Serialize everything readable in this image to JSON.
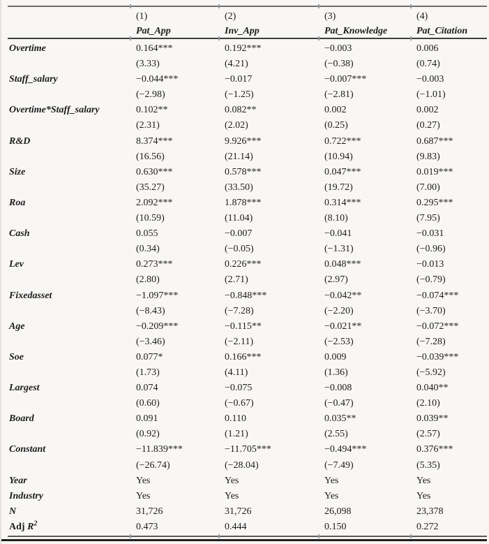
{
  "page": {
    "background": "#f8f7f5",
    "text_color": "#1d1d1d",
    "rule_color_top": "#6d6d6d",
    "rule_color_header": "#3e3e3e",
    "rule_color_bottom": "#1f1f1f"
  },
  "table": {
    "column_numbers": [
      "(1)",
      "(2)",
      "(3)",
      "(4)"
    ],
    "column_names": [
      "Pat_App",
      "Inv_App",
      "Pat_Knowledge",
      "Pat_Citation"
    ],
    "coef_rows": [
      {
        "label": "Overtime",
        "coefs": [
          "0.164***",
          "0.192***",
          "−0.003",
          "0.006"
        ],
        "tstats": [
          "(3.33)",
          "(4.21)",
          "(−0.38)",
          "(0.74)"
        ]
      },
      {
        "label": "Staff_salary",
        "coefs": [
          "−0.044***",
          "−0.017",
          "−0.007***",
          "−0.003"
        ],
        "tstats": [
          "(−2.98)",
          "(−1.25)",
          "(−2.81)",
          "(−1.01)"
        ]
      },
      {
        "label": "Overtime*Staff_salary",
        "coefs": [
          "0.102**",
          "0.082**",
          "0.002",
          "0.002"
        ],
        "tstats": [
          "(2.31)",
          "(2.02)",
          "(0.25)",
          "(0.27)"
        ]
      },
      {
        "label": "R&D",
        "coefs": [
          "8.374***",
          "9.926***",
          "0.722***",
          "0.687***"
        ],
        "tstats": [
          "(16.56)",
          "(21.14)",
          "(10.94)",
          "(9.83)"
        ]
      },
      {
        "label": "Size",
        "coefs": [
          "0.630***",
          "0.578***",
          "0.047***",
          "0.019***"
        ],
        "tstats": [
          "(35.27)",
          "(33.50)",
          "(19.72)",
          "(7.00)"
        ]
      },
      {
        "label": "Roa",
        "coefs": [
          "2.092***",
          "1.878***",
          "0.314***",
          "0.295***"
        ],
        "tstats": [
          "(10.59)",
          "(11.04)",
          "(8.10)",
          "(7.95)"
        ]
      },
      {
        "label": "Cash",
        "coefs": [
          "0.055",
          "−0.007",
          "−0.041",
          "−0.031"
        ],
        "tstats": [
          "(0.34)",
          "(−0.05)",
          "(−1.31)",
          "(−0.96)"
        ]
      },
      {
        "label": "Lev",
        "coefs": [
          "0.273***",
          "0.226***",
          "0.048***",
          "−0.013"
        ],
        "tstats": [
          "(2.80)",
          "(2.71)",
          "(2.97)",
          "(−0.79)"
        ]
      },
      {
        "label": "Fixedasset",
        "coefs": [
          "−1.097***",
          "−0.848***",
          "−0.042**",
          "−0.074***"
        ],
        "tstats": [
          "(−8.43)",
          "(−7.28)",
          "(−2.20)",
          "(−3.70)"
        ]
      },
      {
        "label": "Age",
        "coefs": [
          "−0.209***",
          "−0.115**",
          "−0.021**",
          "−0.072***"
        ],
        "tstats": [
          "(−3.46)",
          "(−2.11)",
          "(−2.53)",
          "(−7.28)"
        ]
      },
      {
        "label": "Soe",
        "coefs": [
          "0.077*",
          "0.166***",
          "0.009",
          "−0.039***"
        ],
        "tstats": [
          "(1.73)",
          "(4.11)",
          "(1.36)",
          "(−5.92)"
        ]
      },
      {
        "label": "Largest",
        "coefs": [
          "0.074",
          "−0.075",
          "−0.008",
          "0.040**"
        ],
        "tstats": [
          "(0.60)",
          "(−0.67)",
          "(−0.47)",
          "(2.10)"
        ]
      },
      {
        "label": "Board",
        "coefs": [
          "0.091",
          "0.110",
          "0.035**",
          "0.039**"
        ],
        "tstats": [
          "(0.92)",
          "(1.21)",
          "(2.55)",
          "(2.57)"
        ]
      },
      {
        "label": "Constant",
        "coefs": [
          "−11.839***",
          "−11.705***",
          "−0.494***",
          "0.376***"
        ],
        "tstats": [
          "(−26.74)",
          "(−28.04)",
          "(−7.49)",
          "(5.35)"
        ]
      }
    ],
    "info_rows": [
      {
        "label": "Year",
        "values": [
          "Yes",
          "Yes",
          "Yes",
          "Yes"
        ]
      },
      {
        "label": "Industry",
        "values": [
          "Yes",
          "Yes",
          "Yes",
          "Yes"
        ]
      },
      {
        "label": "N",
        "values": [
          "31,726",
          "31,726",
          "26,098",
          "23,378"
        ]
      },
      {
        "label_parts": {
          "roman": "Adj ",
          "italic": "R",
          "sup": "2"
        },
        "values": [
          "0.473",
          "0.444",
          "0.150",
          "0.272"
        ]
      }
    ]
  }
}
